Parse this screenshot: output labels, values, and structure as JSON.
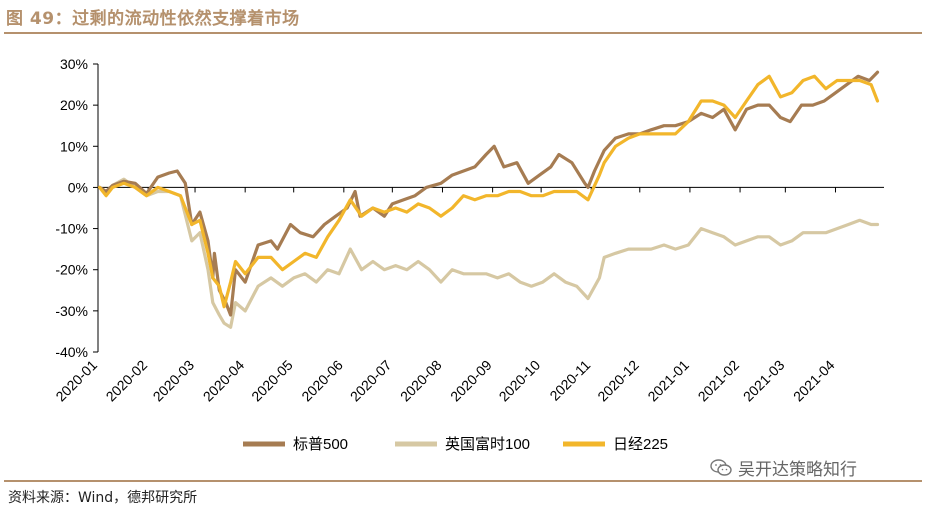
{
  "header": {
    "title": "图 49：过剩的流动性依然支撑着市场"
  },
  "footer": {
    "source": "资料来源：Wind，德邦研究所",
    "watermark": "吴开达策略知行"
  },
  "colors": {
    "sp500": "#a67c52",
    "ftse100": "#d6c8a3",
    "nikkei225": "#f2b62b",
    "accent": "#b5916d"
  },
  "chart_data": {
    "type": "line",
    "ylim": [
      -40,
      30
    ],
    "yticks": [
      30,
      20,
      10,
      0,
      -10,
      -20,
      -30,
      -40
    ],
    "ytick_labels": [
      "30%",
      "20%",
      "10%",
      "0%",
      "-10%",
      "-20%",
      "-30%",
      "-40%"
    ],
    "xticks": [
      "2020-01",
      "2020-02",
      "2020-03",
      "2020-04",
      "2020-05",
      "2020-06",
      "2020-07",
      "2020-08",
      "2020-09",
      "2020-10",
      "2020-11",
      "2020-12",
      "2021-01",
      "2021-02",
      "2021-03",
      "2021-04"
    ],
    "legend": "bottom",
    "series": [
      {
        "name": "标普500",
        "color": "#a67c52",
        "points": [
          [
            "2020-01-02",
            0
          ],
          [
            "2020-01-06",
            -1
          ],
          [
            "2020-01-10",
            0.5
          ],
          [
            "2020-01-17",
            1.5
          ],
          [
            "2020-01-24",
            1
          ],
          [
            "2020-01-31",
            -1.5
          ],
          [
            "2020-02-07",
            2.5
          ],
          [
            "2020-02-14",
            3.5
          ],
          [
            "2020-02-19",
            4
          ],
          [
            "2020-02-24",
            1
          ],
          [
            "2020-02-28",
            -9
          ],
          [
            "2020-03-04",
            -6
          ],
          [
            "2020-03-09",
            -13
          ],
          [
            "2020-03-12",
            -22
          ],
          [
            "2020-03-13",
            -16
          ],
          [
            "2020-03-16",
            -25
          ],
          [
            "2020-03-20",
            -28
          ],
          [
            "2020-03-23",
            -31
          ],
          [
            "2020-03-26",
            -20
          ],
          [
            "2020-04-01",
            -23
          ],
          [
            "2020-04-09",
            -14
          ],
          [
            "2020-04-17",
            -13
          ],
          [
            "2020-04-21",
            -15
          ],
          [
            "2020-04-29",
            -9
          ],
          [
            "2020-05-05",
            -11
          ],
          [
            "2020-05-13",
            -12
          ],
          [
            "2020-05-20",
            -9
          ],
          [
            "2020-05-27",
            -7
          ],
          [
            "2020-06-03",
            -5
          ],
          [
            "2020-06-08",
            -1
          ],
          [
            "2020-06-11",
            -7
          ],
          [
            "2020-06-19",
            -5
          ],
          [
            "2020-06-26",
            -7
          ],
          [
            "2020-07-01",
            -4
          ],
          [
            "2020-07-08",
            -3
          ],
          [
            "2020-07-15",
            -2
          ],
          [
            "2020-07-22",
            0
          ],
          [
            "2020-07-31",
            1
          ],
          [
            "2020-08-07",
            3
          ],
          [
            "2020-08-14",
            4
          ],
          [
            "2020-08-21",
            5
          ],
          [
            "2020-08-28",
            8
          ],
          [
            "2020-09-02",
            10
          ],
          [
            "2020-09-08",
            5
          ],
          [
            "2020-09-16",
            6
          ],
          [
            "2020-09-23",
            1
          ],
          [
            "2020-09-30",
            3
          ],
          [
            "2020-10-07",
            5
          ],
          [
            "2020-10-12",
            8
          ],
          [
            "2020-10-20",
            6
          ],
          [
            "2020-10-28",
            1
          ],
          [
            "2020-10-30",
            0
          ],
          [
            "2020-11-03",
            4
          ],
          [
            "2020-11-09",
            9
          ],
          [
            "2020-11-16",
            12
          ],
          [
            "2020-11-24",
            13
          ],
          [
            "2020-12-01",
            13
          ],
          [
            "2020-12-08",
            14
          ],
          [
            "2020-12-16",
            15
          ],
          [
            "2020-12-23",
            15
          ],
          [
            "2020-12-31",
            16
          ],
          [
            "2021-01-08",
            18
          ],
          [
            "2021-01-15",
            17
          ],
          [
            "2021-01-22",
            19
          ],
          [
            "2021-01-29",
            14
          ],
          [
            "2021-02-05",
            19
          ],
          [
            "2021-02-12",
            20
          ],
          [
            "2021-02-19",
            20
          ],
          [
            "2021-02-26",
            17
          ],
          [
            "2021-03-04",
            16
          ],
          [
            "2021-03-11",
            20
          ],
          [
            "2021-03-18",
            20
          ],
          [
            "2021-03-25",
            21
          ],
          [
            "2021-04-01",
            23
          ],
          [
            "2021-04-08",
            25
          ],
          [
            "2021-04-15",
            27
          ],
          [
            "2021-04-22",
            26
          ],
          [
            "2021-04-27",
            28
          ]
        ]
      },
      {
        "name": "英国富时100",
        "color": "#d6c8a3",
        "points": [
          [
            "2020-01-02",
            0
          ],
          [
            "2020-01-06",
            -1
          ],
          [
            "2020-01-10",
            0.5
          ],
          [
            "2020-01-17",
            2
          ],
          [
            "2020-01-24",
            0
          ],
          [
            "2020-01-31",
            -2
          ],
          [
            "2020-02-07",
            -1
          ],
          [
            "2020-02-14",
            -1
          ],
          [
            "2020-02-21",
            -2
          ],
          [
            "2020-02-28",
            -13
          ],
          [
            "2020-03-04",
            -11
          ],
          [
            "2020-03-09",
            -20
          ],
          [
            "2020-03-12",
            -28
          ],
          [
            "2020-03-16",
            -31
          ],
          [
            "2020-03-19",
            -33
          ],
          [
            "2020-03-23",
            -34
          ],
          [
            "2020-03-26",
            -28
          ],
          [
            "2020-04-01",
            -30
          ],
          [
            "2020-04-09",
            -24
          ],
          [
            "2020-04-17",
            -22
          ],
          [
            "2020-04-24",
            -24
          ],
          [
            "2020-05-01",
            -22
          ],
          [
            "2020-05-08",
            -21
          ],
          [
            "2020-05-15",
            -23
          ],
          [
            "2020-05-22",
            -20
          ],
          [
            "2020-05-29",
            -21
          ],
          [
            "2020-06-05",
            -15
          ],
          [
            "2020-06-12",
            -20
          ],
          [
            "2020-06-19",
            -18
          ],
          [
            "2020-06-26",
            -20
          ],
          [
            "2020-07-03",
            -19
          ],
          [
            "2020-07-10",
            -20
          ],
          [
            "2020-07-17",
            -18
          ],
          [
            "2020-07-24",
            -20
          ],
          [
            "2020-07-31",
            -23
          ],
          [
            "2020-08-07",
            -20
          ],
          [
            "2020-08-14",
            -21
          ],
          [
            "2020-08-21",
            -21
          ],
          [
            "2020-08-28",
            -21
          ],
          [
            "2020-09-04",
            -22
          ],
          [
            "2020-09-11",
            -21
          ],
          [
            "2020-09-18",
            -23
          ],
          [
            "2020-09-25",
            -24
          ],
          [
            "2020-10-02",
            -23
          ],
          [
            "2020-10-09",
            -21
          ],
          [
            "2020-10-16",
            -23
          ],
          [
            "2020-10-23",
            -24
          ],
          [
            "2020-10-30",
            -27
          ],
          [
            "2020-11-06",
            -22
          ],
          [
            "2020-11-09",
            -17
          ],
          [
            "2020-11-16",
            -16
          ],
          [
            "2020-11-24",
            -15
          ],
          [
            "2020-12-01",
            -15
          ],
          [
            "2020-12-08",
            -15
          ],
          [
            "2020-12-16",
            -14
          ],
          [
            "2020-12-23",
            -15
          ],
          [
            "2020-12-31",
            -14
          ],
          [
            "2021-01-08",
            -10
          ],
          [
            "2021-01-15",
            -11
          ],
          [
            "2021-01-22",
            -12
          ],
          [
            "2021-01-29",
            -14
          ],
          [
            "2021-02-05",
            -13
          ],
          [
            "2021-02-12",
            -12
          ],
          [
            "2021-02-19",
            -12
          ],
          [
            "2021-02-26",
            -14
          ],
          [
            "2021-03-05",
            -13
          ],
          [
            "2021-03-12",
            -11
          ],
          [
            "2021-03-19",
            -11
          ],
          [
            "2021-03-26",
            -11
          ],
          [
            "2021-04-02",
            -10
          ],
          [
            "2021-04-09",
            -9
          ],
          [
            "2021-04-16",
            -8
          ],
          [
            "2021-04-23",
            -9
          ],
          [
            "2021-04-27",
            -9
          ]
        ]
      },
      {
        "name": "日经225",
        "color": "#f2b62b",
        "points": [
          [
            "2020-01-02",
            0
          ],
          [
            "2020-01-06",
            -2
          ],
          [
            "2020-01-10",
            0
          ],
          [
            "2020-01-17",
            1
          ],
          [
            "2020-01-24",
            0
          ],
          [
            "2020-01-31",
            -2
          ],
          [
            "2020-02-07",
            0
          ],
          [
            "2020-02-14",
            -1
          ],
          [
            "2020-02-21",
            -2
          ],
          [
            "2020-02-28",
            -9
          ],
          [
            "2020-03-04",
            -8
          ],
          [
            "2020-03-09",
            -16
          ],
          [
            "2020-03-12",
            -22
          ],
          [
            "2020-03-16",
            -24
          ],
          [
            "2020-03-19",
            -29
          ],
          [
            "2020-03-23",
            -23
          ],
          [
            "2020-03-26",
            -18
          ],
          [
            "2020-04-01",
            -21
          ],
          [
            "2020-04-09",
            -17
          ],
          [
            "2020-04-17",
            -17
          ],
          [
            "2020-04-24",
            -20
          ],
          [
            "2020-05-01",
            -18
          ],
          [
            "2020-05-08",
            -16
          ],
          [
            "2020-05-15",
            -17
          ],
          [
            "2020-05-22",
            -12
          ],
          [
            "2020-05-29",
            -8
          ],
          [
            "2020-06-05",
            -3
          ],
          [
            "2020-06-12",
            -7
          ],
          [
            "2020-06-19",
            -5
          ],
          [
            "2020-06-26",
            -6
          ],
          [
            "2020-07-03",
            -5
          ],
          [
            "2020-07-10",
            -6
          ],
          [
            "2020-07-17",
            -4
          ],
          [
            "2020-07-24",
            -5
          ],
          [
            "2020-07-31",
            -7
          ],
          [
            "2020-08-07",
            -5
          ],
          [
            "2020-08-14",
            -2
          ],
          [
            "2020-08-21",
            -3
          ],
          [
            "2020-08-28",
            -2
          ],
          [
            "2020-09-04",
            -2
          ],
          [
            "2020-09-11",
            -1
          ],
          [
            "2020-09-18",
            -1
          ],
          [
            "2020-09-25",
            -2
          ],
          [
            "2020-10-02",
            -2
          ],
          [
            "2020-10-09",
            -1
          ],
          [
            "2020-10-16",
            -1
          ],
          [
            "2020-10-23",
            -1
          ],
          [
            "2020-10-30",
            -3
          ],
          [
            "2020-11-06",
            3
          ],
          [
            "2020-11-09",
            6
          ],
          [
            "2020-11-16",
            10
          ],
          [
            "2020-11-24",
            12
          ],
          [
            "2020-12-01",
            13
          ],
          [
            "2020-12-08",
            13
          ],
          [
            "2020-12-16",
            13
          ],
          [
            "2020-12-23",
            13
          ],
          [
            "2020-12-31",
            16
          ],
          [
            "2021-01-08",
            21
          ],
          [
            "2021-01-15",
            21
          ],
          [
            "2021-01-22",
            20
          ],
          [
            "2021-01-29",
            17
          ],
          [
            "2021-02-05",
            21
          ],
          [
            "2021-02-12",
            25
          ],
          [
            "2021-02-19",
            27
          ],
          [
            "2021-02-26",
            22
          ],
          [
            "2021-03-05",
            23
          ],
          [
            "2021-03-12",
            26
          ],
          [
            "2021-03-19",
            27
          ],
          [
            "2021-03-26",
            24
          ],
          [
            "2021-04-02",
            26
          ],
          [
            "2021-04-09",
            26
          ],
          [
            "2021-04-16",
            26
          ],
          [
            "2021-04-23",
            25
          ],
          [
            "2021-04-27",
            21
          ]
        ]
      }
    ]
  }
}
